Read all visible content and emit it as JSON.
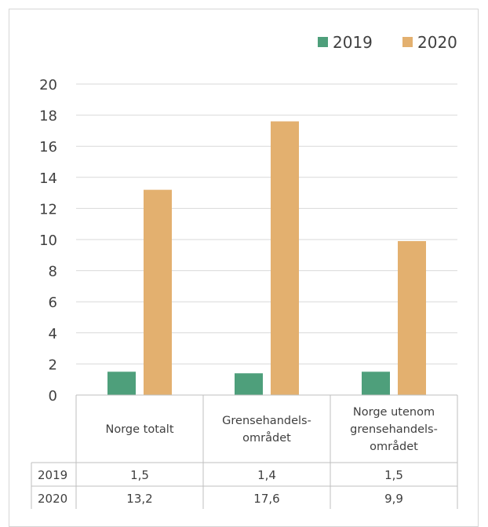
{
  "chart_data": {
    "type": "bar",
    "categories": [
      [
        "Norge totalt"
      ],
      [
        "Grensehandels-",
        "området"
      ],
      [
        "Norge utenom",
        "grensehandels-",
        "området"
      ]
    ],
    "series": [
      {
        "name": "2019",
        "values": [
          1.5,
          1.4,
          1.5
        ],
        "display": [
          "1,5",
          "1,4",
          "1,5"
        ],
        "color": "#4e9f7b"
      },
      {
        "name": "2020",
        "values": [
          13.2,
          17.6,
          9.9
        ],
        "display": [
          "13,2",
          "17,6",
          "9,9"
        ],
        "color": "#e3b06f"
      }
    ],
    "ylim": [
      0,
      20
    ],
    "yticks": [
      0,
      2,
      4,
      6,
      8,
      10,
      12,
      14,
      16,
      18,
      20
    ],
    "grid": true,
    "legend": "top-right",
    "data_table": true
  }
}
